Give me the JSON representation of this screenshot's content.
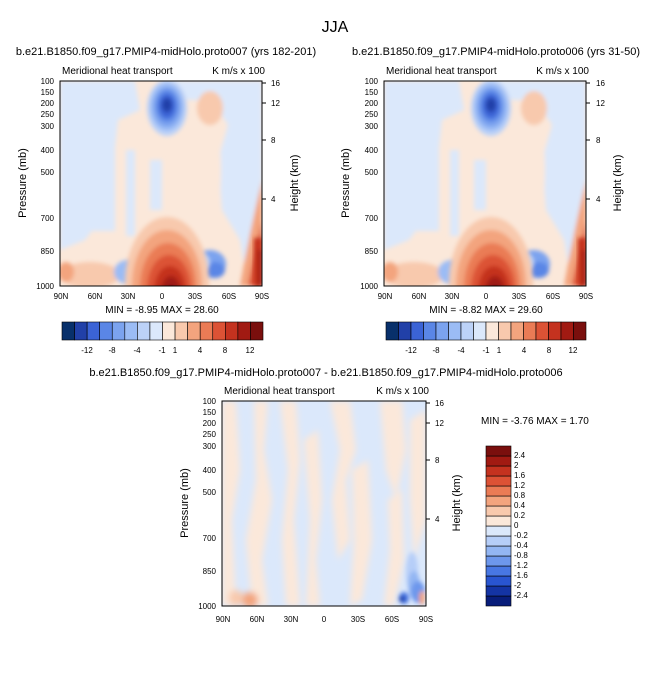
{
  "figure_title": "JJA",
  "colors": {
    "fill_scale_top": [
      "#08306b",
      "#2140a8",
      "#3b63d6",
      "#5a86e6",
      "#7ba3ef",
      "#9bbcf5",
      "#bcd2f8",
      "#dbe8fb",
      "#fbe8da",
      "#f8c9ad",
      "#f3a47e",
      "#ea7b55",
      "#dc5235",
      "#c4321f",
      "#a11a12",
      "#7a0f0d"
    ],
    "fill_scale_diff": [
      "#081d7a",
      "#1434a4",
      "#2955d0",
      "#4877e3",
      "#6d97ec",
      "#93b6f3",
      "#b6cef8",
      "#dbe8fb",
      "#fbe8da",
      "#f8c9ad",
      "#f3a47e",
      "#ea7b55",
      "#dc5235",
      "#c4321f",
      "#a11a12",
      "#7a0f0d"
    ]
  },
  "chart_data": [
    {
      "type": "heatmap",
      "title": "b.e21.B1850.f09_g17.PMIP4-midHolo.proto007 (yrs 182-201)",
      "left_string": "Meridional heat transport",
      "right_string": "K m/s x 100",
      "ylabel": "Pressure (mb)",
      "ylabel_right": "Height (km)",
      "x_ticks": [
        "90N",
        "60N",
        "30N",
        "0",
        "30S",
        "60S",
        "90S"
      ],
      "y_ticks": [
        "100",
        "150",
        "200",
        "250",
        "300",
        "400",
        "500",
        "700",
        "850",
        "1000"
      ],
      "y_ticks_right": [
        "16",
        "12",
        "8",
        "4"
      ],
      "stats": "MIN = -8.95  MAX = 28.60",
      "min": -8.95,
      "max": 28.6,
      "colorbar_labels": [
        "-12",
        "-8",
        "-4",
        "-1",
        "1",
        "4",
        "8",
        "12"
      ]
    },
    {
      "type": "heatmap",
      "title": "b.e21.B1850.f09_g17.PMIP4-midHolo.proto006 (yrs 31-50)",
      "left_string": "Meridional heat transport",
      "right_string": "K m/s x 100",
      "ylabel": "Pressure (mb)",
      "ylabel_right": "Height (km)",
      "x_ticks": [
        "90N",
        "60N",
        "30N",
        "0",
        "30S",
        "60S",
        "90S"
      ],
      "y_ticks": [
        "100",
        "150",
        "200",
        "250",
        "300",
        "400",
        "500",
        "700",
        "850",
        "1000"
      ],
      "y_ticks_right": [
        "16",
        "12",
        "8",
        "4"
      ],
      "stats": "MIN = -8.82  MAX = 29.60",
      "min": -8.82,
      "max": 29.6,
      "colorbar_labels": [
        "-12",
        "-8",
        "-4",
        "-1",
        "1",
        "4",
        "8",
        "12"
      ]
    },
    {
      "type": "heatmap",
      "title": "b.e21.B1850.f09_g17.PMIP4-midHolo.proto007 - b.e21.B1850.f09_g17.PMIP4-midHolo.proto006",
      "left_string": "Meridional heat transport",
      "right_string": "K m/s x 100",
      "ylabel": "Pressure (mb)",
      "ylabel_right": "Height (km)",
      "x_ticks": [
        "90N",
        "60N",
        "30N",
        "0",
        "30S",
        "60S",
        "90S"
      ],
      "y_ticks": [
        "100",
        "150",
        "200",
        "250",
        "300",
        "400",
        "500",
        "700",
        "850",
        "1000"
      ],
      "y_ticks_right": [
        "16",
        "12",
        "8",
        "4"
      ],
      "stats": "MIN = -3.76  MAX =  1.70",
      "min": -3.76,
      "max": 1.7,
      "colorbar_labels": [
        "2.4",
        "2",
        "1.6",
        "1.2",
        "0.8",
        "0.4",
        "0.2",
        "0",
        "-0.2",
        "-0.4",
        "-0.8",
        "-1.2",
        "-1.6",
        "-2",
        "-2.4"
      ]
    }
  ]
}
